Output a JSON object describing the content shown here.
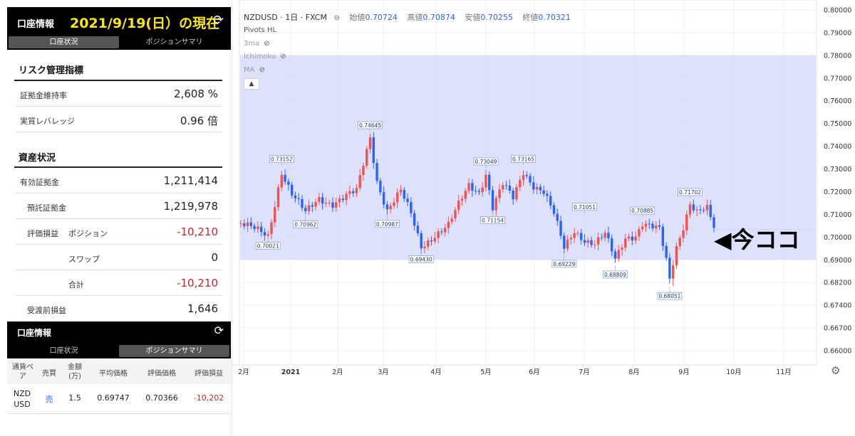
{
  "account": {
    "title": "口座情報",
    "date_banner": "2021/9/19(日）の現在",
    "tabs": [
      "口座状況",
      "ポジションサマリ"
    ],
    "risk": {
      "heading": "リスク管理指標",
      "rows": [
        {
          "label": "証拠金維持率",
          "value": "2,608 %"
        },
        {
          "label": "実質レバレッジ",
          "value": "0.96 倍"
        }
      ]
    },
    "assets": {
      "heading": "資産状況",
      "rows": [
        {
          "label": "有効証拠金",
          "value": "1,211,414"
        },
        {
          "label": "預託証拠金",
          "value": "1,219,978"
        },
        {
          "label": "評価損益",
          "sublabel": "ポジション",
          "value": "-10,210"
        },
        {
          "label": "スワップ",
          "value": "0"
        },
        {
          "label": "合計",
          "value": "-10,210"
        },
        {
          "label": "受渡前損益",
          "value": "1,646"
        }
      ]
    }
  },
  "positions": {
    "title": "口座情報",
    "tabs": [
      "口座状況",
      "ポジションサマリ"
    ],
    "columns": [
      "通貨ペア",
      "売買",
      "金額(万)",
      "平均価格",
      "評価価格",
      "評価損益"
    ],
    "rows": [
      {
        "pair": "NZD USD",
        "side": "売",
        "amount": "1.5",
        "avg": "0.69747",
        "eval": "0.70366",
        "pl": "-10,202"
      }
    ]
  },
  "chart": {
    "symbol": "NZDUSD · 1日 · FXCM",
    "ohlc": [
      {
        "k": "始値",
        "v": "0.70724"
      },
      {
        "k": "高値",
        "v": "0.70874"
      },
      {
        "k": "安値",
        "v": "0.70255"
      },
      {
        "k": "終値",
        "v": "0.70321"
      }
    ],
    "indicators": [
      {
        "name": "Pivots HL",
        "hidden": false
      },
      {
        "name": "3ma",
        "hidden": true
      },
      {
        "name": "Ichimoku",
        "hidden": true
      },
      {
        "name": "MA",
        "hidden": true
      }
    ],
    "annotation": "◀今ココ",
    "colors": {
      "up": "#ef5350",
      "down": "#2962ff",
      "band": "#d9defc"
    }
  },
  "chart_data": {
    "type": "candlestick",
    "symbol": "NZDUSD",
    "y_ticks": [
      "0.80000",
      "0.79000",
      "0.78000",
      "0.77000",
      "0.76000",
      "0.75000",
      "0.74000",
      "0.73000",
      "0.72000",
      "0.71000",
      "0.70000",
      "0.69000",
      "0.68200",
      "0.67400",
      "0.66700",
      "0.66000"
    ],
    "x_ticks": [
      "2月",
      "2021",
      "2月",
      "3月",
      "4月",
      "5月",
      "6月",
      "7月",
      "8月",
      "9月",
      "10月",
      "11月"
    ],
    "band": [
      0.69,
      0.78
    ],
    "pivots": [
      {
        "label": "0.70021",
        "i": 8
      },
      {
        "label": "0.73152",
        "i": 12
      },
      {
        "label": "0.70962",
        "i": 19
      },
      {
        "label": "0.74645",
        "i": 38
      },
      {
        "label": "0.70987",
        "i": 43
      },
      {
        "label": "0.69430",
        "i": 53
      },
      {
        "label": "0.73049",
        "i": 72
      },
      {
        "label": "0.71154",
        "i": 74
      },
      {
        "label": "0.73165",
        "i": 83
      },
      {
        "label": "0.69229",
        "i": 95
      },
      {
        "label": "0.71051",
        "i": 101
      },
      {
        "label": "0.68809",
        "i": 110
      },
      {
        "label": "0.70885",
        "i": 118
      },
      {
        "label": "0.68051",
        "i": 126
      },
      {
        "label": "0.71702",
        "i": 132
      }
    ],
    "waypoints": [
      [
        0,
        0.706
      ],
      [
        3,
        0.704
      ],
      [
        8,
        0.7005
      ],
      [
        12,
        0.729
      ],
      [
        15,
        0.719
      ],
      [
        19,
        0.7105
      ],
      [
        23,
        0.717
      ],
      [
        27,
        0.715
      ],
      [
        31,
        0.718
      ],
      [
        34,
        0.72
      ],
      [
        38,
        0.744
      ],
      [
        40,
        0.725
      ],
      [
        43,
        0.712
      ],
      [
        47,
        0.72
      ],
      [
        50,
        0.71
      ],
      [
        53,
        0.696
      ],
      [
        57,
        0.701
      ],
      [
        61,
        0.705
      ],
      [
        64,
        0.714
      ],
      [
        67,
        0.723
      ],
      [
        70,
        0.72
      ],
      [
        72,
        0.728
      ],
      [
        74,
        0.713
      ],
      [
        77,
        0.723
      ],
      [
        80,
        0.717
      ],
      [
        83,
        0.729
      ],
      [
        86,
        0.723
      ],
      [
        89,
        0.72
      ],
      [
        92,
        0.71
      ],
      [
        95,
        0.695
      ],
      [
        98,
        0.703
      ],
      [
        101,
        0.699
      ],
      [
        104,
        0.697
      ],
      [
        107,
        0.701
      ],
      [
        110,
        0.69
      ],
      [
        113,
        0.7
      ],
      [
        116,
        0.701
      ],
      [
        118,
        0.706
      ],
      [
        121,
        0.704
      ],
      [
        123,
        0.703
      ],
      [
        126,
        0.683
      ],
      [
        128,
        0.696
      ],
      [
        130,
        0.705
      ],
      [
        132,
        0.715
      ],
      [
        134,
        0.711
      ],
      [
        137,
        0.712
      ],
      [
        139,
        0.704
      ]
    ]
  }
}
